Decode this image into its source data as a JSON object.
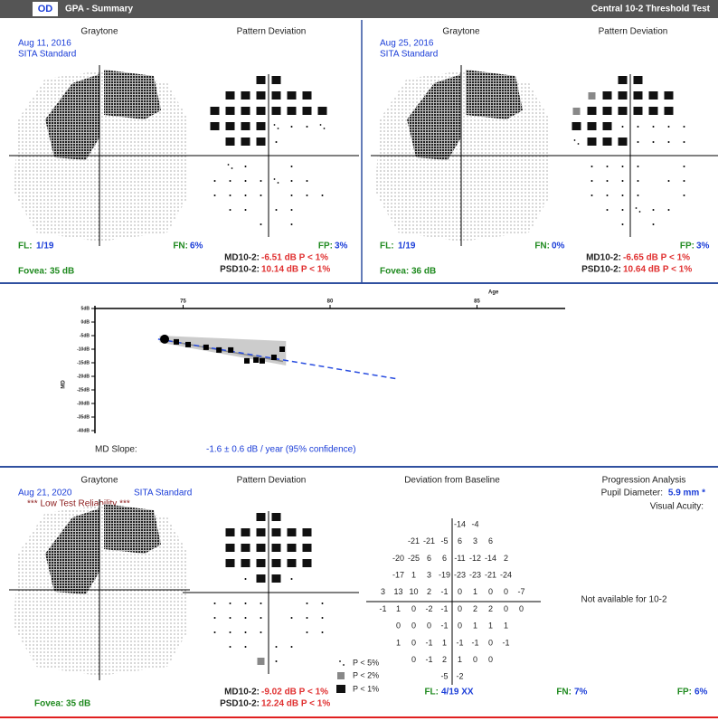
{
  "header": {
    "eye": "OD",
    "title": "GPA - Summary",
    "test": "Central 10-2 Threshold Test"
  },
  "exams": [
    {
      "graytone_label": "Graytone",
      "pd_label": "Pattern Deviation",
      "date": "Aug 11, 2016",
      "strategy": "SITA Standard",
      "fl_label": "FL:",
      "fl": "1/19",
      "fn_label": "FN:",
      "fn": "6%",
      "fp_label": "FP:",
      "fp": "3%",
      "md_label": "MD10-2:",
      "md": "-6.51 dB P < 1%",
      "psd_label": "PSD10-2:",
      "psd": "10.14 dB P < 1%",
      "fovea_label": "Fovea:",
      "fovea": "35 dB"
    },
    {
      "graytone_label": "Graytone",
      "pd_label": "Pattern Deviation",
      "date": "Aug 25, 2016",
      "strategy": "SITA Standard",
      "fl_label": "FL:",
      "fl": "1/19",
      "fn_label": "FN:",
      "fn": "0%",
      "fp_label": "FP:",
      "fp": "3%",
      "md_label": "MD10-2:",
      "md": "-6.65 dB P < 1%",
      "psd_label": "PSD10-2:",
      "psd": "10.64 dB P < 1%",
      "fovea_label": "Fovea:",
      "fovea": "36 dB"
    }
  ],
  "md_plot": {
    "x_label": "Age",
    "y_label": "MD",
    "xlim": [
      72,
      88
    ],
    "xticks": [
      75,
      80,
      85
    ],
    "ylim": [
      -40,
      5
    ],
    "yticks": [
      {
        "value": 5,
        "label": "5dB"
      },
      {
        "value": 0,
        "label": "0dB"
      },
      {
        "value": -5,
        "label": "-5dB"
      },
      {
        "value": -10,
        "label": "-10dB"
      },
      {
        "value": -15,
        "label": "-15dB"
      },
      {
        "value": -20,
        "label": "-20dB"
      },
      {
        "value": -25,
        "label": "-25dB"
      },
      {
        "value": -30,
        "label": "-30dB"
      },
      {
        "value": -35,
        "label": "-35dB"
      },
      {
        "value": -40,
        "label": "-40dB"
      }
    ],
    "ages": [
      74.37,
      74.77,
      75.17,
      75.78,
      76.22,
      76.62,
      77.17,
      77.48,
      77.69,
      78.09,
      78.37
    ],
    "md": [
      -6.3,
      -7.3,
      -8.3,
      -9.3,
      -10.3,
      -10.3,
      -14.3,
      -14.0,
      -14.3,
      -13.0,
      -10.0
    ],
    "trend_age": [
      74.15,
      82.31
    ],
    "trend_md": [
      -6.3,
      -21
    ],
    "slope_label": "MD Slope:",
    "slope": "-1.6 ± 0.6 dB / year (95% confidence)"
  },
  "followup": {
    "graytone_label": "Graytone",
    "pd_label": "Pattern Deviation",
    "dbl_label": "Deviation from Baseline",
    "prog_label": "Progression Analysis",
    "date": "Aug 21, 2020",
    "strategy": "SITA Standard",
    "reliability": "*** Low Test Reliability ***",
    "pupil_label": "Pupil Diameter:",
    "pupil": "5.9 mm *",
    "acuity_label": "Visual Acuity:",
    "not_available": "Not available for 10-2",
    "dev_rows": [
      {
        "left": [],
        "right": [
          "-14",
          "-4"
        ]
      },
      {
        "left": [
          "-21",
          "-21",
          "-5"
        ],
        "right": [
          "6",
          "3",
          "6"
        ]
      },
      {
        "left": [
          "-20",
          "-25",
          "6",
          "6"
        ],
        "right": [
          "-11",
          "-12",
          "-14",
          "2"
        ]
      },
      {
        "left": [
          "-17",
          "1",
          "3",
          "-19"
        ],
        "right": [
          "-23",
          "-23",
          "-21",
          "-24"
        ]
      },
      {
        "left": [
          "3",
          "13",
          "10",
          "2",
          "-1"
        ],
        "right": [
          "0",
          "1",
          "0",
          "0",
          "-7"
        ]
      },
      {
        "left": [
          "-1",
          "1",
          "0",
          "-2",
          "-1"
        ],
        "right": [
          "0",
          "2",
          "2",
          "0",
          "0"
        ]
      },
      {
        "left": [
          "0",
          "0",
          "0",
          "-1"
        ],
        "right": [
          "0",
          "1",
          "1",
          "1"
        ]
      },
      {
        "left": [
          "1",
          "0",
          "-1",
          "1"
        ],
        "right": [
          "-1",
          "-1",
          "0",
          "-1"
        ]
      },
      {
        "left": [
          "0",
          "-1",
          "2"
        ],
        "right": [
          "1",
          "0",
          "0"
        ]
      },
      {
        "left": [
          "-5"
        ],
        "right": [
          "-2"
        ]
      }
    ],
    "legend": [
      "P < 5%",
      "P < 2%",
      "P < 1%"
    ],
    "md_label": "MD10-2:",
    "md": "-9.02 dB P < 1%",
    "psd_label": "PSD10-2:",
    "psd": "12.24 dB P < 1%",
    "fovea_label": "Fovea:",
    "fovea": "35 dB",
    "fl_label": "FL:",
    "fl": "4/19 XX",
    "fn_label": "FN:",
    "fn": "7%",
    "fp_label": "FP:",
    "fp": "6%"
  }
}
